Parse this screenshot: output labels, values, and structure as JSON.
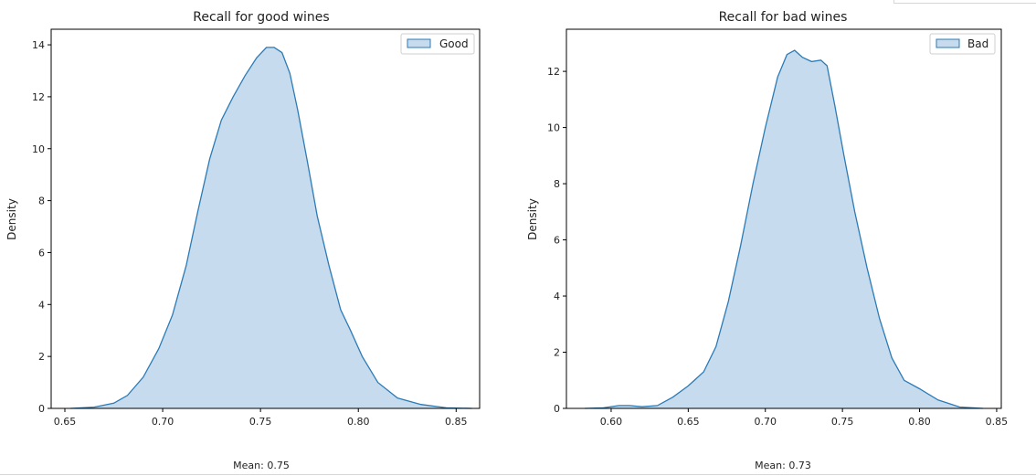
{
  "colors": {
    "fill": "#c6dbed",
    "line": "#2c7bb6",
    "axis": "#000000"
  },
  "chart_data": [
    {
      "type": "area",
      "title": "Recall for good wines",
      "xlabel": "",
      "ylabel": "Density",
      "caption": "Mean: 0.75",
      "xlim": [
        0.643,
        0.862
      ],
      "ylim": [
        0,
        14.6
      ],
      "xticks": [
        0.65,
        0.7,
        0.75,
        0.8,
        0.85
      ],
      "xtick_labels": [
        "0.65",
        "0.70",
        "0.75",
        "0.80",
        "0.85"
      ],
      "yticks": [
        0,
        2,
        4,
        6,
        8,
        10,
        12,
        14
      ],
      "ytick_labels": [
        "0",
        "2",
        "4",
        "6",
        "8",
        "10",
        "12",
        "14"
      ],
      "legend": "top-right",
      "series": [
        {
          "name": "Good",
          "x": [
            0.653,
            0.665,
            0.675,
            0.682,
            0.69,
            0.698,
            0.705,
            0.712,
            0.718,
            0.724,
            0.73,
            0.736,
            0.742,
            0.748,
            0.753,
            0.757,
            0.761,
            0.765,
            0.769,
            0.774,
            0.779,
            0.785,
            0.791,
            0.796,
            0.802,
            0.81,
            0.82,
            0.832,
            0.845,
            0.858
          ],
          "y": [
            0.0,
            0.05,
            0.2,
            0.5,
            1.2,
            2.3,
            3.6,
            5.5,
            7.6,
            9.6,
            11.1,
            12.0,
            12.8,
            13.5,
            13.9,
            13.9,
            13.7,
            12.9,
            11.5,
            9.5,
            7.4,
            5.5,
            3.8,
            3.0,
            2.0,
            1.0,
            0.4,
            0.15,
            0.02,
            0.0
          ]
        }
      ]
    },
    {
      "type": "area",
      "title": "Recall for bad wines",
      "xlabel": "",
      "ylabel": "Density",
      "caption": "Mean: 0.73",
      "xlim": [
        0.571,
        0.853
      ],
      "ylim": [
        0,
        13.5
      ],
      "xticks": [
        0.6,
        0.65,
        0.7,
        0.75,
        0.8,
        0.85
      ],
      "xtick_labels": [
        "0.60",
        "0.65",
        "0.70",
        "0.75",
        "0.80",
        "0.85"
      ],
      "yticks": [
        0,
        2,
        4,
        6,
        8,
        10,
        12
      ],
      "ytick_labels": [
        "0",
        "2",
        "4",
        "6",
        "8",
        "10",
        "12"
      ],
      "legend": "top-right",
      "series": [
        {
          "name": "Bad",
          "x": [
            0.583,
            0.595,
            0.605,
            0.612,
            0.62,
            0.63,
            0.64,
            0.65,
            0.66,
            0.668,
            0.676,
            0.684,
            0.692,
            0.7,
            0.708,
            0.714,
            0.719,
            0.724,
            0.73,
            0.736,
            0.74,
            0.745,
            0.751,
            0.758,
            0.766,
            0.774,
            0.782,
            0.79,
            0.8,
            0.812,
            0.826,
            0.841
          ],
          "y": [
            0.0,
            0.02,
            0.1,
            0.1,
            0.06,
            0.1,
            0.4,
            0.8,
            1.3,
            2.2,
            3.8,
            5.8,
            8.0,
            10.0,
            11.8,
            12.6,
            12.75,
            12.5,
            12.35,
            12.4,
            12.2,
            10.8,
            9.0,
            7.0,
            5.0,
            3.2,
            1.8,
            1.0,
            0.7,
            0.3,
            0.05,
            0.0
          ]
        }
      ]
    }
  ]
}
